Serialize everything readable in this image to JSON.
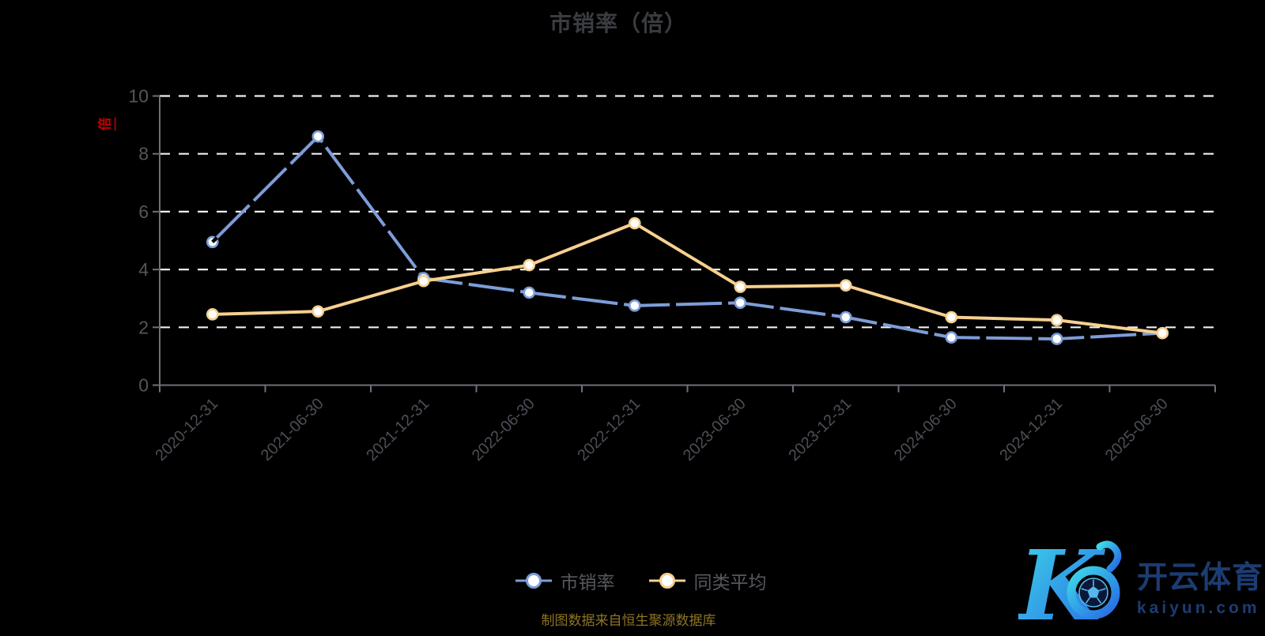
{
  "title": "市销率（倍）",
  "y_axis_name": "倍",
  "source_note": "制图数据来自恒生聚源数据库",
  "legend": [
    {
      "label": "市销率",
      "color": "#7d9dd8"
    },
    {
      "label": "同类平均",
      "color": "#f6d08f"
    }
  ],
  "logo": {
    "monogram": "K",
    "brand_cn": "开云体育",
    "brand_domain": "kaiyun.com"
  },
  "colors": {
    "background": "#000000",
    "series1": "#7d9dd8",
    "series2": "#f6d08f",
    "marker_fill": "#ffffff",
    "grid": "#eeeeee",
    "axis": "#6e7079",
    "axis_label": "#54565c",
    "tick_label": "#4b4e54",
    "title": "#3a3c41",
    "note": "#8e7424",
    "axis_name_red": "#c40000",
    "logo_navy": "#1c3c72",
    "logo_cyan": "#3fd8e8",
    "logo_blue": "#2668e6"
  },
  "chart_data": {
    "type": "line",
    "title": "市销率（倍）",
    "ylabel": "倍",
    "xlabel": "",
    "ylim": [
      0,
      10
    ],
    "y_ticks": [
      0,
      2,
      4,
      6,
      8,
      10
    ],
    "grid": "horizontal dashed white",
    "legend_position": "bottom",
    "x_label_rotation": -45,
    "categories": [
      "2020-12-31",
      "2021-06-30",
      "2021-12-31",
      "2022-06-30",
      "2022-12-31",
      "2023-06-30",
      "2023-12-31",
      "2024-06-30",
      "2024-12-31",
      "2025-06-30"
    ],
    "series": [
      {
        "name": "市销率",
        "color": "#7d9dd8",
        "values": [
          4.95,
          8.6,
          3.7,
          3.2,
          2.75,
          2.85,
          2.35,
          1.65,
          1.6,
          1.8
        ]
      },
      {
        "name": "同类平均",
        "color": "#f6d08f",
        "values": [
          2.45,
          2.55,
          3.6,
          4.15,
          5.6,
          3.4,
          3.45,
          2.35,
          2.25,
          1.8
        ]
      }
    ]
  }
}
